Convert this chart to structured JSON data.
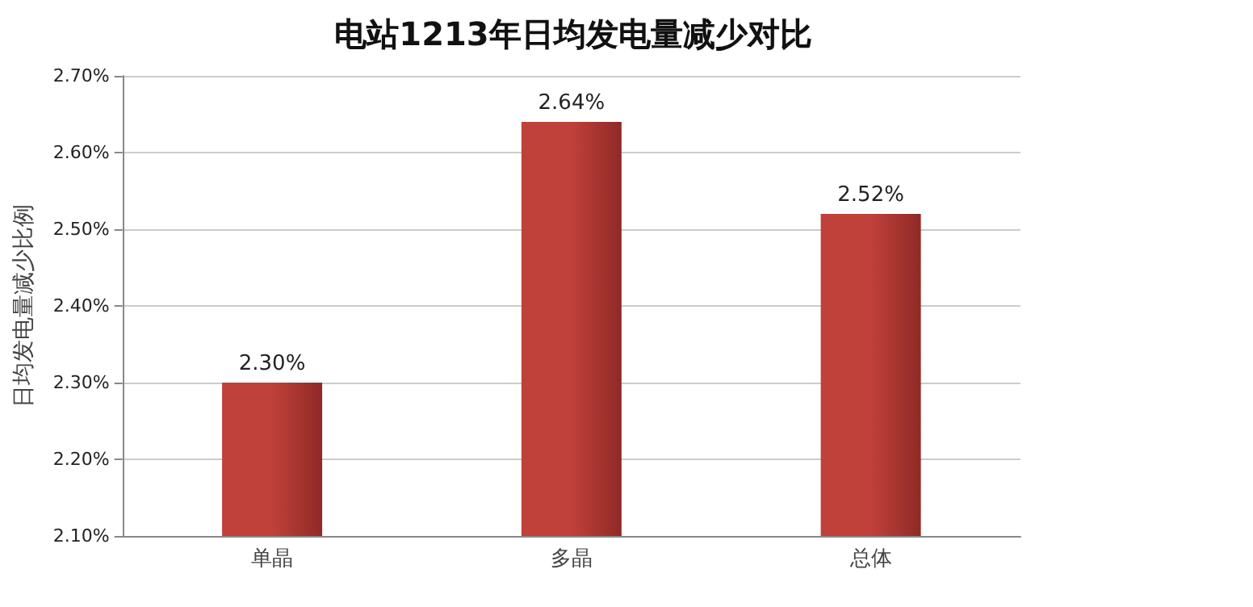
{
  "chart_data": {
    "type": "bar",
    "title": "电站1213年日均发电量减少对比",
    "ylabel": "日均发电量减少比例",
    "categories": [
      "单晶",
      "多晶",
      "总体"
    ],
    "values": [
      2.3,
      2.64,
      2.52
    ],
    "value_labels": [
      "2.30%",
      "2.64%",
      "2.52%"
    ],
    "color": "#c0403a",
    "ylim": [
      2.1,
      2.7
    ],
    "yticks": [
      {
        "value": 2.1,
        "label": "2.10%"
      },
      {
        "value": 2.2,
        "label": "2.20%"
      },
      {
        "value": 2.3,
        "label": "2.30%"
      },
      {
        "value": 2.4,
        "label": "2.40%"
      },
      {
        "value": 2.5,
        "label": "2.50%"
      },
      {
        "value": 2.6,
        "label": "2.60%"
      },
      {
        "value": 2.7,
        "label": "2.70%"
      }
    ],
    "grid": "y"
  }
}
